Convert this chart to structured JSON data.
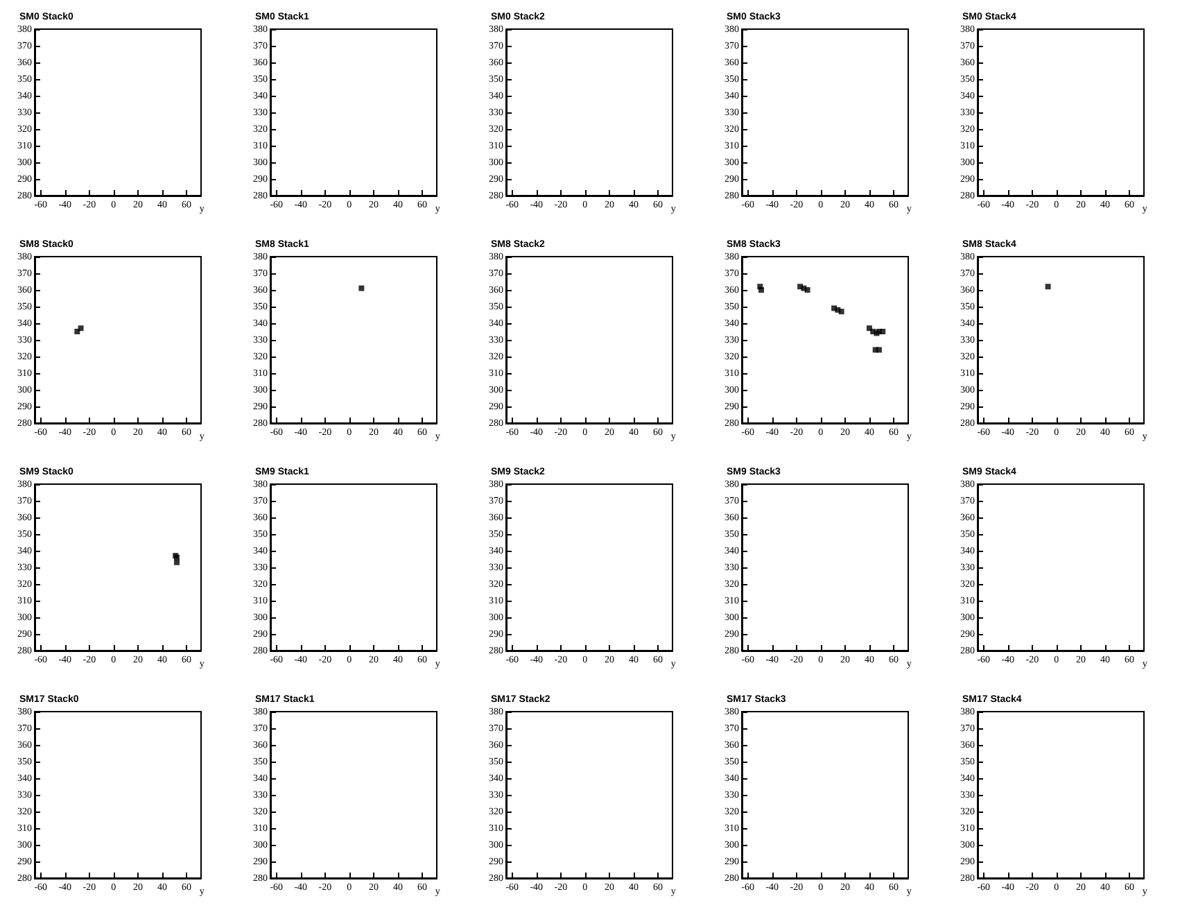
{
  "chart_data": [
    {
      "type": "scatter",
      "title": "SM0 Stack0",
      "xlabel": "y",
      "color": "#000000",
      "marker": "square",
      "xlim": [
        -65,
        72
      ],
      "ylim": [
        280,
        380
      ],
      "xticks": [
        -60,
        -40,
        -20,
        0,
        20,
        40,
        60
      ],
      "yticks": [
        280,
        290,
        300,
        310,
        320,
        330,
        340,
        350,
        360,
        370,
        380
      ]
    },
    {
      "type": "scatter",
      "title": "SM0 Stack1",
      "xlabel": "y",
      "color": "#000000",
      "marker": "square",
      "xlim": [
        -65,
        72
      ],
      "ylim": [
        280,
        380
      ],
      "xticks": [
        -60,
        -40,
        -20,
        0,
        20,
        40,
        60
      ],
      "yticks": [
        280,
        290,
        300,
        310,
        320,
        330,
        340,
        350,
        360,
        370,
        380
      ]
    },
    {
      "type": "scatter",
      "title": "SM0 Stack2",
      "xlabel": "y",
      "color": "#000000",
      "marker": "square",
      "xlim": [
        -65,
        72
      ],
      "ylim": [
        280,
        380
      ],
      "xticks": [
        -60,
        -40,
        -20,
        0,
        20,
        40,
        60
      ],
      "yticks": [
        280,
        290,
        300,
        310,
        320,
        330,
        340,
        350,
        360,
        370,
        380
      ]
    },
    {
      "type": "scatter",
      "title": "SM0 Stack3",
      "xlabel": "y",
      "color": "#000000",
      "marker": "square",
      "xlim": [
        -65,
        72
      ],
      "ylim": [
        280,
        380
      ],
      "xticks": [
        -60,
        -40,
        -20,
        0,
        20,
        40,
        60
      ],
      "yticks": [
        280,
        290,
        300,
        310,
        320,
        330,
        340,
        350,
        360,
        370,
        380
      ]
    },
    {
      "type": "scatter",
      "title": "SM0 Stack4",
      "xlabel": "y",
      "color": "#000000",
      "marker": "square",
      "xlim": [
        -65,
        72
      ],
      "ylim": [
        280,
        380
      ],
      "xticks": [
        -60,
        -40,
        -20,
        0,
        20,
        40,
        60
      ],
      "yticks": [
        280,
        290,
        300,
        310,
        320,
        330,
        340,
        350,
        360,
        370,
        380
      ]
    },
    {
      "type": "scatter",
      "title": "SM8 Stack0",
      "xlabel": "y",
      "x": [
        -30,
        -27
      ],
      "values": [
        335,
        337
      ],
      "color": "#000000",
      "marker": "square",
      "xlim": [
        -65,
        72
      ],
      "ylim": [
        280,
        380
      ],
      "xticks": [
        -60,
        -40,
        -20,
        0,
        20,
        40,
        60
      ],
      "yticks": [
        280,
        290,
        300,
        310,
        320,
        330,
        340,
        350,
        360,
        370,
        380
      ]
    },
    {
      "type": "scatter",
      "title": "SM8 Stack1",
      "xlabel": "y",
      "x": [
        10
      ],
      "values": [
        361
      ],
      "color": "#000000",
      "marker": "square",
      "xlim": [
        -65,
        72
      ],
      "ylim": [
        280,
        380
      ],
      "xticks": [
        -60,
        -40,
        -20,
        0,
        20,
        40,
        60
      ],
      "yticks": [
        280,
        290,
        300,
        310,
        320,
        330,
        340,
        350,
        360,
        370,
        380
      ]
    },
    {
      "type": "scatter",
      "title": "SM8 Stack2",
      "xlabel": "y",
      "color": "#000000",
      "marker": "square",
      "xlim": [
        -65,
        72
      ],
      "ylim": [
        280,
        380
      ],
      "xticks": [
        -60,
        -40,
        -20,
        0,
        20,
        40,
        60
      ],
      "yticks": [
        280,
        290,
        300,
        310,
        320,
        330,
        340,
        350,
        360,
        370,
        380
      ]
    },
    {
      "type": "scatter",
      "title": "SM8 Stack3",
      "xlabel": "y",
      "x": [
        -50,
        -49,
        -17,
        -14,
        -11,
        11,
        14,
        17,
        40,
        43,
        46,
        48,
        51,
        45,
        48
      ],
      "values": [
        362,
        360,
        362,
        361,
        360,
        349,
        348,
        347,
        337,
        335,
        334,
        335,
        335,
        324,
        324
      ],
      "color": "#000000",
      "marker": "square",
      "xlim": [
        -65,
        72
      ],
      "ylim": [
        280,
        380
      ],
      "xticks": [
        -60,
        -40,
        -20,
        0,
        20,
        40,
        60
      ],
      "yticks": [
        280,
        290,
        300,
        310,
        320,
        330,
        340,
        350,
        360,
        370,
        380
      ]
    },
    {
      "type": "scatter",
      "title": "SM8 Stack4",
      "xlabel": "y",
      "x": [
        -7
      ],
      "values": [
        362
      ],
      "color": "#000000",
      "marker": "square",
      "xlim": [
        -65,
        72
      ],
      "ylim": [
        280,
        380
      ],
      "xticks": [
        -60,
        -40,
        -20,
        0,
        20,
        40,
        60
      ],
      "yticks": [
        280,
        290,
        300,
        310,
        320,
        330,
        340,
        350,
        360,
        370,
        380
      ]
    },
    {
      "type": "scatter",
      "title": "SM9 Stack0",
      "xlabel": "y",
      "x": [
        51,
        52,
        52
      ],
      "values": [
        337,
        336,
        333
      ],
      "color": "#000000",
      "marker": "square",
      "xlim": [
        -65,
        72
      ],
      "ylim": [
        280,
        380
      ],
      "xticks": [
        -60,
        -40,
        -20,
        0,
        20,
        40,
        60
      ],
      "yticks": [
        280,
        290,
        300,
        310,
        320,
        330,
        340,
        350,
        360,
        370,
        380
      ]
    },
    {
      "type": "scatter",
      "title": "SM9 Stack1",
      "xlabel": "y",
      "color": "#000000",
      "marker": "square",
      "xlim": [
        -65,
        72
      ],
      "ylim": [
        280,
        380
      ],
      "xticks": [
        -60,
        -40,
        -20,
        0,
        20,
        40,
        60
      ],
      "yticks": [
        280,
        290,
        300,
        310,
        320,
        330,
        340,
        350,
        360,
        370,
        380
      ]
    },
    {
      "type": "scatter",
      "title": "SM9 Stack2",
      "xlabel": "y",
      "color": "#000000",
      "marker": "square",
      "xlim": [
        -65,
        72
      ],
      "ylim": [
        280,
        380
      ],
      "xticks": [
        -60,
        -40,
        -20,
        0,
        20,
        40,
        60
      ],
      "yticks": [
        280,
        290,
        300,
        310,
        320,
        330,
        340,
        350,
        360,
        370,
        380
      ]
    },
    {
      "type": "scatter",
      "title": "SM9 Stack3",
      "xlabel": "y",
      "color": "#000000",
      "marker": "square",
      "xlim": [
        -65,
        72
      ],
      "ylim": [
        280,
        380
      ],
      "xticks": [
        -60,
        -40,
        -20,
        0,
        20,
        40,
        60
      ],
      "yticks": [
        280,
        290,
        300,
        310,
        320,
        330,
        340,
        350,
        360,
        370,
        380
      ]
    },
    {
      "type": "scatter",
      "title": "SM9 Stack4",
      "xlabel": "y",
      "color": "#000000",
      "marker": "square",
      "xlim": [
        -65,
        72
      ],
      "ylim": [
        280,
        380
      ],
      "xticks": [
        -60,
        -40,
        -20,
        0,
        20,
        40,
        60
      ],
      "yticks": [
        280,
        290,
        300,
        310,
        320,
        330,
        340,
        350,
        360,
        370,
        380
      ]
    },
    {
      "type": "scatter",
      "title": "SM17 Stack0",
      "xlabel": "y",
      "color": "#000000",
      "marker": "square",
      "xlim": [
        -65,
        72
      ],
      "ylim": [
        280,
        380
      ],
      "xticks": [
        -60,
        -40,
        -20,
        0,
        20,
        40,
        60
      ],
      "yticks": [
        280,
        290,
        300,
        310,
        320,
        330,
        340,
        350,
        360,
        370,
        380
      ]
    },
    {
      "type": "scatter",
      "title": "SM17 Stack1",
      "xlabel": "y",
      "color": "#000000",
      "marker": "square",
      "xlim": [
        -65,
        72
      ],
      "ylim": [
        280,
        380
      ],
      "xticks": [
        -60,
        -40,
        -20,
        0,
        20,
        40,
        60
      ],
      "yticks": [
        280,
        290,
        300,
        310,
        320,
        330,
        340,
        350,
        360,
        370,
        380
      ]
    },
    {
      "type": "scatter",
      "title": "SM17 Stack2",
      "xlabel": "y",
      "color": "#000000",
      "marker": "square",
      "xlim": [
        -65,
        72
      ],
      "ylim": [
        280,
        380
      ],
      "xticks": [
        -60,
        -40,
        -20,
        0,
        20,
        40,
        60
      ],
      "yticks": [
        280,
        290,
        300,
        310,
        320,
        330,
        340,
        350,
        360,
        370,
        380
      ]
    },
    {
      "type": "scatter",
      "title": "SM17 Stack3",
      "xlabel": "y",
      "color": "#000000",
      "marker": "square",
      "xlim": [
        -65,
        72
      ],
      "ylim": [
        280,
        380
      ],
      "xticks": [
        -60,
        -40,
        -20,
        0,
        20,
        40,
        60
      ],
      "yticks": [
        280,
        290,
        300,
        310,
        320,
        330,
        340,
        350,
        360,
        370,
        380
      ]
    },
    {
      "type": "scatter",
      "title": "SM17 Stack4",
      "xlabel": "y",
      "color": "#000000",
      "marker": "square",
      "xlim": [
        -65,
        72
      ],
      "ylim": [
        280,
        380
      ],
      "xticks": [
        -60,
        -40,
        -20,
        0,
        20,
        40,
        60
      ],
      "yticks": [
        280,
        290,
        300,
        310,
        320,
        330,
        340,
        350,
        360,
        370,
        380
      ]
    }
  ]
}
